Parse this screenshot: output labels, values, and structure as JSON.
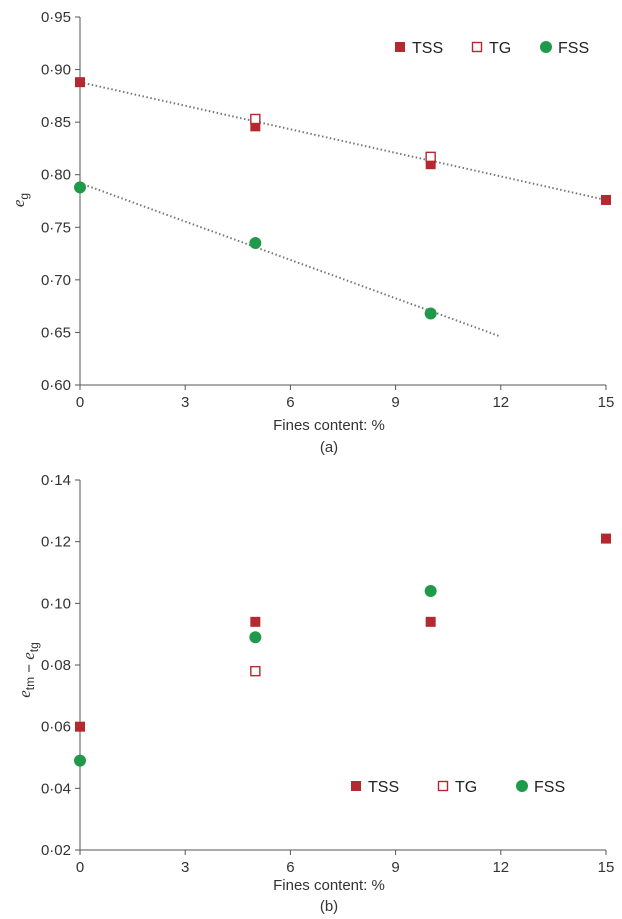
{
  "colors": {
    "tss": "#b5282f",
    "tg": "#b5282f",
    "fss": "#1e9a4a",
    "axis": "#555555",
    "trend": "#777777"
  },
  "chart_data": [
    {
      "type": "scatter",
      "panel": "a",
      "caption": "(a)",
      "xlabel": "Fines content: %",
      "ylabel": {
        "base": "e",
        "sub": "g",
        "parts": []
      },
      "xlim": [
        0,
        15
      ],
      "ylim": [
        0.6,
        0.95
      ],
      "xticks": [
        0,
        3,
        6,
        9,
        12,
        15
      ],
      "yticks": [
        0.6,
        0.65,
        0.7,
        0.75,
        0.8,
        0.85,
        0.9,
        0.95
      ],
      "xtick_labels": [
        "0",
        "3",
        "6",
        "9",
        "12",
        "15"
      ],
      "ytick_labels": [
        "0·60",
        "0·65",
        "0·70",
        "0·75",
        "0·80",
        "0·85",
        "0·90",
        "0·95"
      ],
      "grid": false,
      "legend_position": "top-right",
      "series": [
        {
          "name": "TSS",
          "marker": "filled-square",
          "x": [
            0,
            5,
            10,
            15
          ],
          "y": [
            0.888,
            0.846,
            0.81,
            0.776
          ]
        },
        {
          "name": "TG",
          "marker": "open-square",
          "x": [
            5,
            10
          ],
          "y": [
            0.853,
            0.817
          ]
        },
        {
          "name": "FSS",
          "marker": "filled-circle",
          "x": [
            0,
            5,
            10
          ],
          "y": [
            0.788,
            0.735,
            0.668
          ]
        }
      ],
      "trendlines": [
        {
          "style": "dotted",
          "x": [
            0,
            15
          ],
          "y": [
            0.888,
            0.776
          ]
        },
        {
          "style": "dotted",
          "x": [
            0,
            12
          ],
          "y": [
            0.792,
            0.646
          ]
        }
      ]
    },
    {
      "type": "scatter",
      "panel": "b",
      "caption": "(b)",
      "xlabel": "Fines content: %",
      "ylabel": {
        "base": "",
        "sub": "",
        "parts": [
          {
            "base": "e",
            "sub": "tm"
          },
          {
            "op": " − "
          },
          {
            "base": "e",
            "sub": "tg"
          }
        ]
      },
      "xlim": [
        0,
        15
      ],
      "ylim": [
        0.02,
        0.14
      ],
      "xticks": [
        0,
        3,
        6,
        9,
        12,
        15
      ],
      "yticks": [
        0.02,
        0.04,
        0.06,
        0.08,
        0.1,
        0.12,
        0.14
      ],
      "xtick_labels": [
        "0",
        "3",
        "6",
        "9",
        "12",
        "15"
      ],
      "ytick_labels": [
        "0·02",
        "0·04",
        "0·06",
        "0·08",
        "0·10",
        "0·12",
        "0·14"
      ],
      "grid": false,
      "legend_position": "bottom-right",
      "series": [
        {
          "name": "TSS",
          "marker": "filled-square",
          "x": [
            0,
            5,
            10,
            15
          ],
          "y": [
            0.06,
            0.094,
            0.094,
            0.121
          ]
        },
        {
          "name": "TG",
          "marker": "open-square",
          "x": [
            5
          ],
          "y": [
            0.078
          ]
        },
        {
          "name": "FSS",
          "marker": "filled-circle",
          "x": [
            0,
            5,
            10
          ],
          "y": [
            0.049,
            0.089,
            0.104
          ]
        }
      ],
      "trendlines": []
    }
  ]
}
